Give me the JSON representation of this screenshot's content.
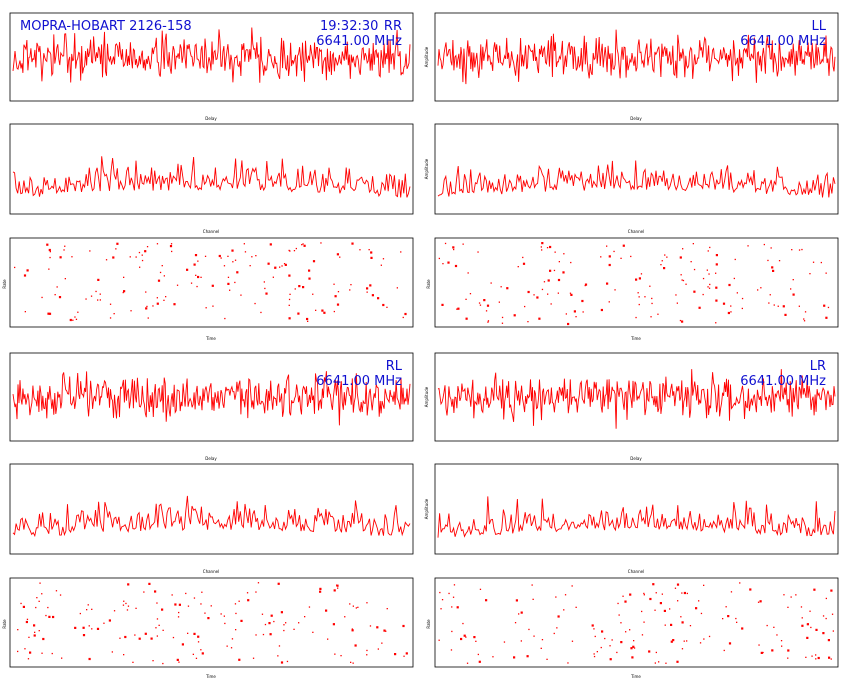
{
  "window": {
    "background": "#ffffff",
    "trace_color": "#ff0000",
    "annotation_color": "#1010d0"
  },
  "annotations": {
    "source": "MOPRA-HOBART 2126-158",
    "time": "19:32:30",
    "freq": "6641.00 MHz",
    "pol_rr": "RR",
    "pol_ll": "LL",
    "pol_rl": "RL",
    "pol_lr": "LR"
  },
  "labels": {
    "delay": "Delay",
    "channel": "Channel",
    "amplitude": "Amplitude",
    "time": "Time",
    "rate": "Rate"
  },
  "chart_data": [
    {
      "panel": "RR-delay",
      "type": "line",
      "xlabel": "Delay",
      "ylabel": "",
      "grid": false,
      "series": [
        {
          "points": 400,
          "seed": 11
        }
      ]
    },
    {
      "panel": "LL-delay",
      "type": "line",
      "xlabel": "Delay",
      "ylabel": "Amplitude",
      "grid": false,
      "series": [
        {
          "points": 400,
          "seed": 12
        }
      ]
    },
    {
      "panel": "RR-channel",
      "type": "line",
      "xlabel": "Channel",
      "ylabel": "",
      "grid": false,
      "series": [
        {
          "points": 256,
          "seed": 13
        }
      ]
    },
    {
      "panel": "LL-channel",
      "type": "line",
      "xlabel": "Channel",
      "ylabel": "Amplitude",
      "grid": false,
      "series": [
        {
          "points": 256,
          "seed": 14
        }
      ]
    },
    {
      "panel": "RR-rate",
      "type": "scatter",
      "xlabel": "Time",
      "ylabel": "Rate",
      "grid": false,
      "series": [
        {
          "points": 170,
          "seed": 15
        }
      ]
    },
    {
      "panel": "LL-rate",
      "type": "scatter",
      "xlabel": "Time",
      "ylabel": "Rate",
      "grid": false,
      "series": [
        {
          "points": 170,
          "seed": 16
        }
      ]
    },
    {
      "panel": "RL-delay",
      "type": "line",
      "xlabel": "Delay",
      "ylabel": "",
      "grid": false,
      "series": [
        {
          "points": 400,
          "seed": 21
        }
      ]
    },
    {
      "panel": "LR-delay",
      "type": "line",
      "xlabel": "Delay",
      "ylabel": "Amplitude",
      "grid": false,
      "series": [
        {
          "points": 400,
          "seed": 22
        }
      ]
    },
    {
      "panel": "RL-channel",
      "type": "line",
      "xlabel": "Channel",
      "ylabel": "",
      "grid": false,
      "series": [
        {
          "points": 256,
          "seed": 23
        }
      ]
    },
    {
      "panel": "LR-channel",
      "type": "line",
      "xlabel": "Channel",
      "ylabel": "Amplitude",
      "grid": false,
      "series": [
        {
          "points": 256,
          "seed": 24
        }
      ]
    },
    {
      "panel": "RL-rate",
      "type": "scatter",
      "xlabel": "Time",
      "ylabel": "Rate",
      "grid": false,
      "series": [
        {
          "points": 170,
          "seed": 25
        }
      ]
    },
    {
      "panel": "LR-rate",
      "type": "scatter",
      "xlabel": "Time",
      "ylabel": "Rate",
      "grid": false,
      "series": [
        {
          "points": 170,
          "seed": 26
        }
      ]
    }
  ]
}
